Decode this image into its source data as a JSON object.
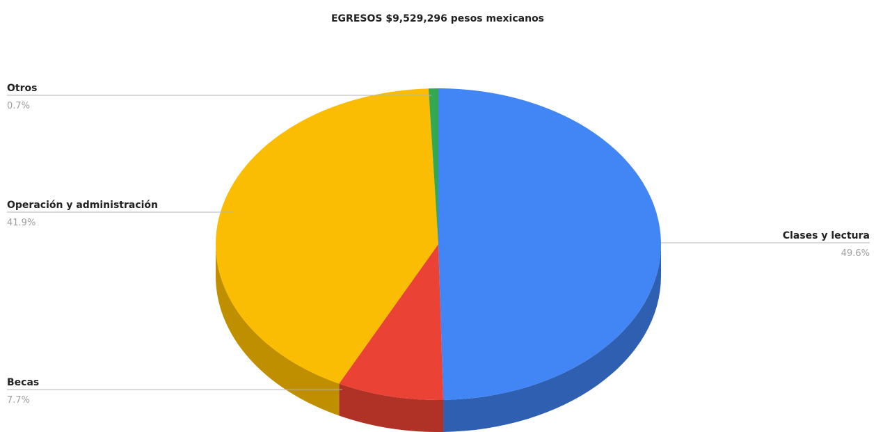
{
  "chart_data": {
    "type": "pie",
    "title": "EGRESOS $9,529,296 pesos mexicanos",
    "three_d": true,
    "slices": [
      {
        "label": "Clases y lectura",
        "value": 49.6,
        "percent_label": "49.6%",
        "color": "#4285f4",
        "side_color": "#2f5fb0"
      },
      {
        "label": "Becas",
        "value": 7.7,
        "percent_label": "7.7%",
        "color": "#ea4335",
        "side_color": "#b03126"
      },
      {
        "label": "Operación y administración",
        "value": 41.9,
        "percent_label": "41.9%",
        "color": "#fbbc04",
        "side_color": "#c08f00"
      },
      {
        "label": "Otros",
        "value": 0.7,
        "percent_label": "0.7%",
        "color": "#34a853",
        "side_color": "#25803c"
      }
    ]
  }
}
